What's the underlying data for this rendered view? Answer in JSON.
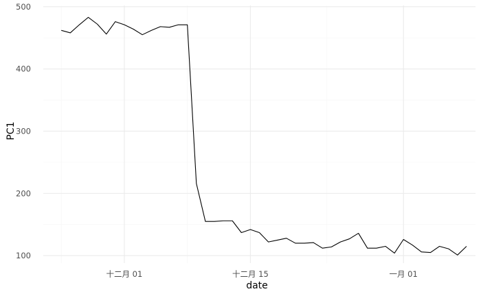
{
  "chart_data": {
    "type": "line",
    "xlabel": "date",
    "ylabel": "PC1",
    "x_ticks": [
      {
        "date": "2021-12-01",
        "label": "十二月 01"
      },
      {
        "date": "2021-12-15",
        "label": "十二月 15"
      },
      {
        "date": "2022-01-01",
        "label": "一月 01"
      }
    ],
    "y_ticks": [
      100,
      200,
      300,
      400,
      500
    ],
    "xlim": [
      "2021-11-22",
      "2022-01-09"
    ],
    "ylim": [
      88,
      502
    ],
    "grid": true,
    "colors": {
      "line": "#000000",
      "grid_major": "#ebebeb",
      "grid_minor": "#f5f5f5",
      "background": "#ffffff"
    },
    "series": [
      {
        "x": [
          "2021-11-24",
          "2021-11-25",
          "2021-11-26",
          "2021-11-27",
          "2021-11-28",
          "2021-11-29",
          "2021-11-30",
          "2021-12-01",
          "2021-12-02",
          "2021-12-03",
          "2021-12-04",
          "2021-12-05",
          "2021-12-06",
          "2021-12-07",
          "2021-12-08",
          "2021-12-09",
          "2021-12-10",
          "2021-12-11",
          "2021-12-12",
          "2021-12-13",
          "2021-12-14",
          "2021-12-15",
          "2021-12-16",
          "2021-12-17",
          "2021-12-18",
          "2021-12-19",
          "2021-12-20",
          "2021-12-21",
          "2021-12-22",
          "2021-12-23",
          "2021-12-24",
          "2021-12-25",
          "2021-12-26",
          "2021-12-27",
          "2021-12-28",
          "2021-12-29",
          "2021-12-30",
          "2021-12-31",
          "2022-01-01",
          "2022-01-02",
          "2022-01-03",
          "2022-01-04",
          "2022-01-05",
          "2022-01-06",
          "2022-01-07",
          "2022-01-08"
        ],
        "y": [
          462,
          458,
          471,
          483,
          472,
          456,
          476,
          471,
          464,
          455,
          462,
          468,
          467,
          471,
          471,
          216,
          155,
          155,
          156,
          156,
          137,
          142,
          137,
          122,
          125,
          128,
          120,
          120,
          121,
          112,
          114,
          122,
          127,
          136,
          112,
          112,
          115,
          104,
          126,
          117,
          106,
          105,
          115,
          111,
          101,
          115
        ]
      }
    ]
  }
}
